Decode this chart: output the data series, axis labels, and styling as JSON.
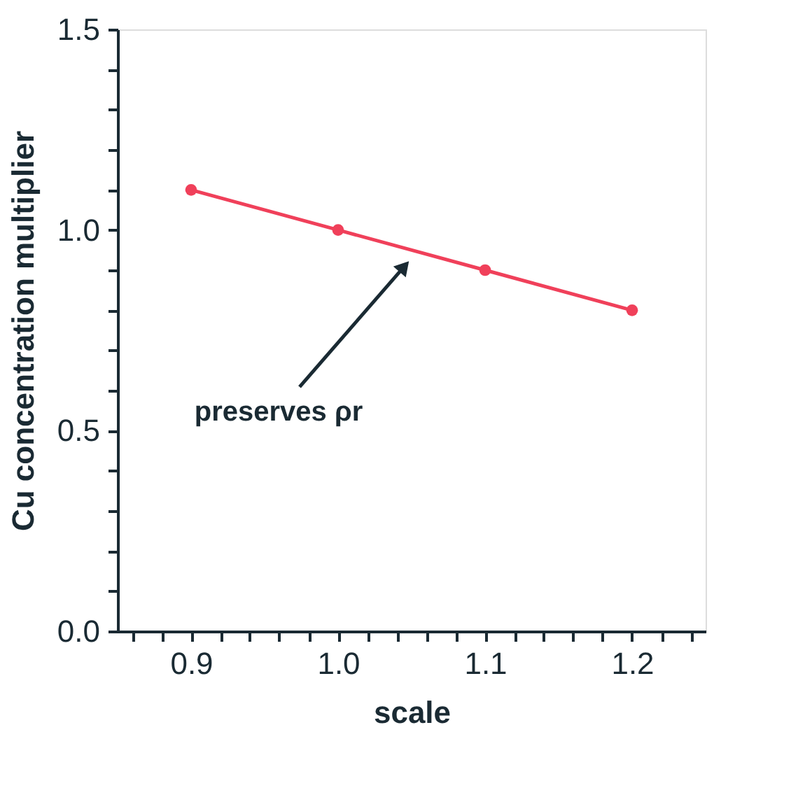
{
  "chart_data": {
    "type": "line",
    "xlabel": "scale",
    "ylabel": "Cu concentration multiplier",
    "x": [
      0.9,
      1.0,
      1.1,
      1.2
    ],
    "series": [
      {
        "color": "#f0405a",
        "values": [
          1.1,
          1.0,
          0.9,
          0.8
        ]
      }
    ],
    "marker": "circle",
    "line_style": "solid",
    "grid": false,
    "xlim": [
      0.85,
      1.25
    ],
    "ylim": [
      0.0,
      1.5
    ],
    "xticks": [
      {
        "value": 0.86,
        "label": null
      },
      {
        "value": 0.88,
        "label": null
      },
      {
        "value": 0.9,
        "label": "0.9"
      },
      {
        "value": 0.92,
        "label": null
      },
      {
        "value": 0.94,
        "label": null
      },
      {
        "value": 0.96,
        "label": null
      },
      {
        "value": 0.98,
        "label": null
      },
      {
        "value": 1.0,
        "label": "1.0"
      },
      {
        "value": 1.02,
        "label": null
      },
      {
        "value": 1.04,
        "label": null
      },
      {
        "value": 1.06,
        "label": null
      },
      {
        "value": 1.08,
        "label": null
      },
      {
        "value": 1.1,
        "label": "1.1"
      },
      {
        "value": 1.12,
        "label": null
      },
      {
        "value": 1.14,
        "label": null
      },
      {
        "value": 1.16,
        "label": null
      },
      {
        "value": 1.18,
        "label": null
      },
      {
        "value": 1.2,
        "label": "1.2"
      },
      {
        "value": 1.22,
        "label": null
      },
      {
        "value": 1.24,
        "label": null
      }
    ],
    "yticks": [
      {
        "value": 0.0,
        "label": "0.0"
      },
      {
        "value": 0.1,
        "label": null
      },
      {
        "value": 0.2,
        "label": null
      },
      {
        "value": 0.3,
        "label": null
      },
      {
        "value": 0.4,
        "label": null
      },
      {
        "value": 0.5,
        "label": "0.5"
      },
      {
        "value": 0.6,
        "label": null
      },
      {
        "value": 0.7,
        "label": null
      },
      {
        "value": 0.8,
        "label": null
      },
      {
        "value": 0.9,
        "label": null
      },
      {
        "value": 1.0,
        "label": "1.0"
      },
      {
        "value": 1.1,
        "label": null
      },
      {
        "value": 1.2,
        "label": null
      },
      {
        "value": 1.3,
        "label": null
      },
      {
        "value": 1.4,
        "label": null
      },
      {
        "value": 1.5,
        "label": "1.5"
      }
    ],
    "annotations": [
      {
        "text": "preserves ρr",
        "x": 1.05,
        "y": 0.93
      }
    ]
  }
}
